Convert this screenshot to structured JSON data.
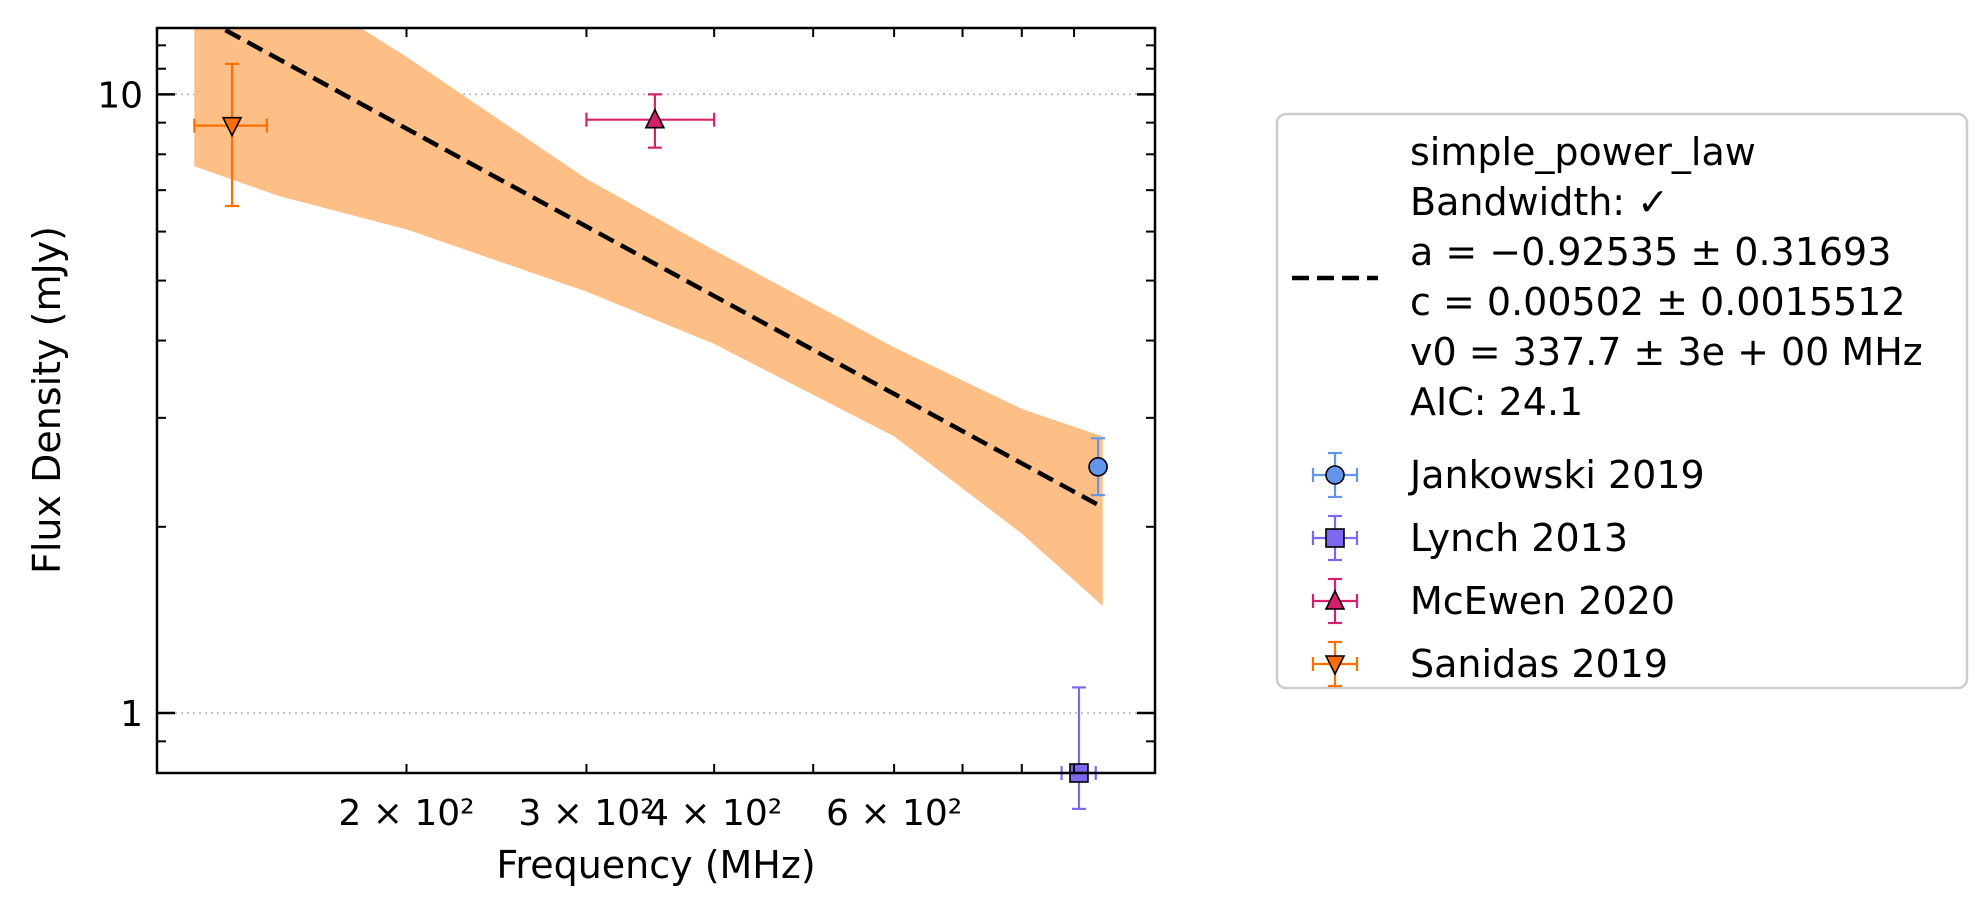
{
  "chart_data": {
    "type": "scatter",
    "title": "",
    "xlabel": "Frequency (MHz)",
    "ylabel": "Flux Density (mJy)",
    "x_scale": "log",
    "y_scale": "log",
    "xlim": [
      114,
      1080
    ],
    "ylim": [
      0.8,
      12.8
    ],
    "x_ticks": [
      {
        "value": 200,
        "label": "2 × 10²"
      },
      {
        "value": 300,
        "label": "3 × 10²"
      },
      {
        "value": 400,
        "label": "4 × 10²"
      },
      {
        "value": 600,
        "label": "6 × 10²"
      }
    ],
    "y_ticks": [
      {
        "value": 1,
        "label": "1"
      },
      {
        "value": 10,
        "label": "10"
      }
    ],
    "grid": "horizontal dotted at major y ticks",
    "legend_placement": "outside-right",
    "fit": {
      "name": "simple_power_law",
      "legend_lines": [
        "simple_power_law",
        "Bandwidth: ✓",
        "a = −0.92535 ± 0.31693",
        "c = 0.00502 ± 0.0015512",
        "v0 = 337.7 ± 3e + 00 MHz",
        "AIC: 24.1"
      ],
      "line": {
        "x": [
          133,
          960
        ],
        "y": [
          12.7,
          2.15
        ]
      },
      "band": {
        "x": [
          124,
          150,
          200,
          300,
          400,
          600,
          800,
          960
        ],
        "upper": [
          15.5,
          15.5,
          11.5,
          7.3,
          5.6,
          3.9,
          3.1,
          2.8
        ],
        "lower": [
          7.65,
          6.85,
          6.05,
          4.8,
          3.95,
          2.8,
          1.95,
          1.49
        ]
      },
      "line_color": "#000000",
      "band_color": "#fdbf86"
    },
    "series": [
      {
        "name": "Jankowski 2019",
        "marker": "circle",
        "color": "#6495ed",
        "points": [
          {
            "x": 950,
            "y": 2.5,
            "x_err": [
              5,
              5
            ],
            "y_err": [
              0.25,
              0.28
            ]
          }
        ]
      },
      {
        "name": "Lynch 2013",
        "marker": "square",
        "color": "#7b68ee",
        "points": [
          {
            "x": 910,
            "y": 0.8,
            "x_err": [
              35,
              35
            ],
            "y_err": [
              0.1,
              0.3
            ]
          }
        ]
      },
      {
        "name": "McEwen 2020",
        "marker": "triangle-up",
        "color": "#d6206e",
        "points": [
          {
            "x": 350,
            "y": 9.1,
            "x_err": [
              50,
              50
            ],
            "y_err": [
              0.9,
              0.9
            ]
          }
        ]
      },
      {
        "name": "Sanidas 2019",
        "marker": "triangle-down",
        "color": "#ff6f00",
        "points": [
          {
            "x": 135,
            "y": 8.9,
            "x_err": [
              11,
              11
            ],
            "y_err": [
              2.3,
              2.3
            ]
          }
        ]
      }
    ]
  }
}
